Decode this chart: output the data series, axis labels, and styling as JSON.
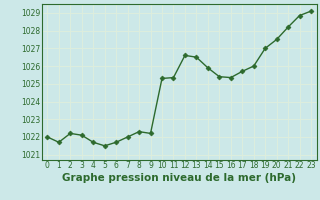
{
  "x": [
    0,
    1,
    2,
    3,
    4,
    5,
    6,
    7,
    8,
    9,
    10,
    11,
    12,
    13,
    14,
    15,
    16,
    17,
    18,
    19,
    20,
    21,
    22,
    23
  ],
  "y": [
    1022.0,
    1021.7,
    1022.2,
    1022.1,
    1021.7,
    1021.5,
    1021.7,
    1022.0,
    1022.3,
    1022.2,
    1025.3,
    1025.35,
    1026.6,
    1026.5,
    1025.9,
    1025.4,
    1025.35,
    1025.7,
    1026.0,
    1027.0,
    1027.5,
    1028.2,
    1028.85,
    1029.1
  ],
  "line_color": "#2d6a2d",
  "marker": "D",
  "marker_size": 2.5,
  "linewidth": 1.0,
  "title": "Graphe pression niveau de la mer (hPa)",
  "ylim": [
    1020.7,
    1029.5
  ],
  "yticks": [
    1021,
    1022,
    1023,
    1024,
    1025,
    1026,
    1027,
    1028,
    1029
  ],
  "xticks": [
    0,
    1,
    2,
    3,
    4,
    5,
    6,
    7,
    8,
    9,
    10,
    11,
    12,
    13,
    14,
    15,
    16,
    17,
    18,
    19,
    20,
    21,
    22,
    23
  ],
  "background_color": "#cce8e8",
  "grid_color": "#ddeedd",
  "title_fontsize": 7.5,
  "tick_fontsize": 5.5,
  "tick_color": "#2d6a2d",
  "label_color": "#2d6a2d",
  "spine_color": "#2d6a2d"
}
